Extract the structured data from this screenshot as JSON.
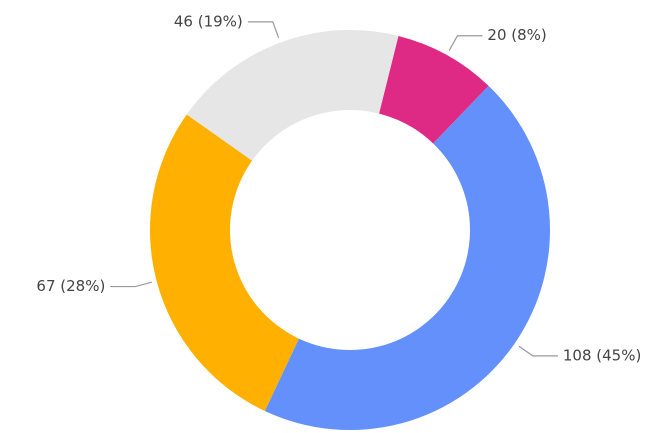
{
  "chart_data": {
    "type": "donut",
    "categories": [
      null,
      null,
      null,
      null
    ],
    "series": [
      {
        "values": [
          20,
          108,
          67,
          46
        ],
        "value_labels": [
          "20 (8%)",
          "108 (45%)",
          "67 (28%)",
          "46 (19%)"
        ],
        "colors": [
          "#de2a85",
          "#6390fb",
          "#ffb000",
          "#e6e6e6"
        ]
      }
    ]
  }
}
